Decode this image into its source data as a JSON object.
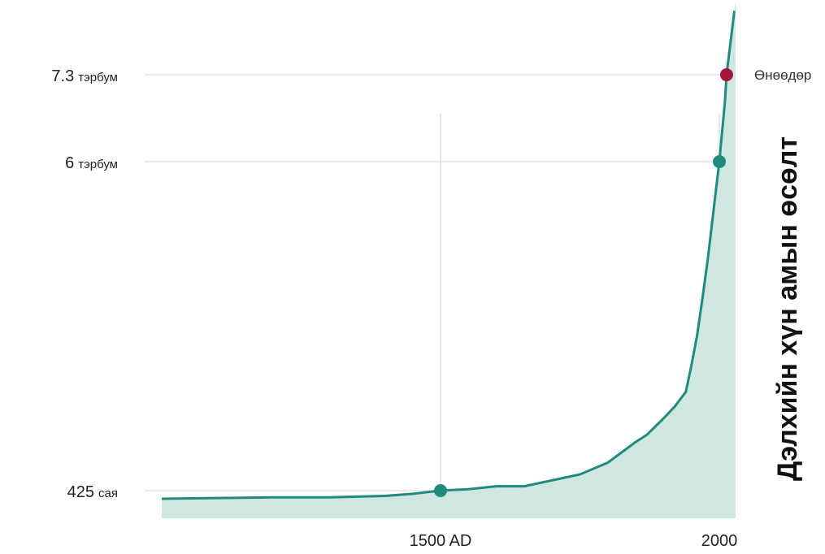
{
  "chart_data": {
    "type": "area",
    "title": "Дэлхийн хүн амын өсөлт",
    "x_ticks": [
      {
        "value": 1500,
        "label": "1500 AD"
      },
      {
        "value": 2000,
        "label": "2000"
      }
    ],
    "y_ticks": [
      {
        "value": 0.425,
        "num": "425",
        "unit": "сая"
      },
      {
        "value": 6.0,
        "num": "6",
        "unit": "тэрбум"
      },
      {
        "value": 7.3,
        "num": "7.3",
        "unit": "тэрбум"
      }
    ],
    "xlim": [
      990,
      2025
    ],
    "ylim": [
      0.31,
      8.18
    ],
    "series": [
      {
        "x": [
          1000,
          1100,
          1200,
          1300,
          1400,
          1450,
          1500,
          1550,
          1600,
          1650,
          1700,
          1750,
          1800,
          1850,
          1870,
          1900,
          1920,
          1940,
          1950,
          1960,
          1970,
          1980,
          1990,
          2000,
          2010,
          2013,
          2027
        ],
        "y": [
          0.31,
          0.32,
          0.33,
          0.33,
          0.35,
          0.38,
          0.425,
          0.45,
          0.5,
          0.5,
          0.6,
          0.7,
          0.9,
          1.25,
          1.37,
          1.65,
          1.85,
          2.1,
          2.55,
          3.05,
          3.7,
          4.4,
          5.2,
          6.0,
          6.9,
          7.3,
          8.2
        ]
      }
    ],
    "markers": [
      {
        "x": 1500,
        "y": 0.425,
        "color": "#1f8a7d"
      },
      {
        "x": 2000,
        "y": 6.0,
        "color": "#1f8a7d"
      },
      {
        "x": 2013,
        "y": 7.3,
        "color": "#a3173d",
        "label": "Өнөөдөр"
      }
    ],
    "colors": {
      "line": "#1f8a7d",
      "fill": "#cfe6e1",
      "today": "#a3173d"
    }
  }
}
